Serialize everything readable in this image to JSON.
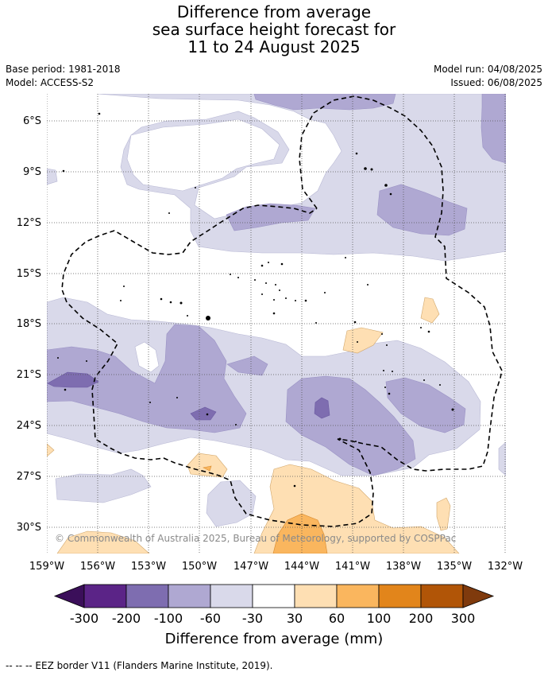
{
  "title": {
    "line1": "Difference from average",
    "line2": "sea surface height forecast for",
    "line3": "11 to 24 August 2025"
  },
  "meta": {
    "base_period": "Base period: 1981-2018",
    "model": "Model: ACCESS-S2",
    "model_run": "Model run: 04/08/2025",
    "issued": "Issued: 06/08/2025"
  },
  "map": {
    "lon_range": [
      -159,
      -132
    ],
    "lat_range": [
      -31.5,
      -4.5
    ],
    "lat_ticks": [
      "6°S",
      "9°S",
      "12°S",
      "15°S",
      "18°S",
      "21°S",
      "24°S",
      "27°S",
      "30°S"
    ],
    "lon_ticks": [
      "159°W",
      "156°W",
      "153°W",
      "150°W",
      "147°W",
      "144°W",
      "141°W",
      "138°W",
      "135°W",
      "132°W"
    ],
    "copyright": "© Commonwealth of Australia 2025, Bureau of Meteorology, supported by COSPPac",
    "grid": true
  },
  "colorbar": {
    "labels": [
      "-300",
      "-200",
      "-100",
      "-60",
      "-30",
      "30",
      "60",
      "100",
      "200",
      "300"
    ],
    "colors": [
      "#3b0f5a",
      "#5b2487",
      "#7e6db0",
      "#afa8d2",
      "#d9d9ea",
      "#ffffff",
      "#fedfb3",
      "#fab65e",
      "#e2851b",
      "#b15507",
      "#7f3a0d"
    ],
    "title": "Difference from average (mm)"
  },
  "legend": {
    "eez_text": "--  --  -- EEZ border V11 (Flanders Marine Institute, 2019)."
  }
}
